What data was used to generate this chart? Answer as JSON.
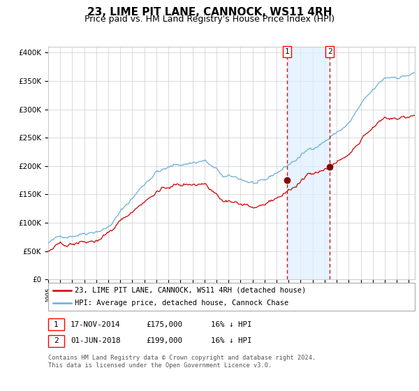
{
  "title": "23, LIME PIT LANE, CANNOCK, WS11 4RH",
  "subtitle": "Price paid vs. HM Land Registry's House Price Index (HPI)",
  "title_fontsize": 11,
  "subtitle_fontsize": 9,
  "legend_line1": "23, LIME PIT LANE, CANNOCK, WS11 4RH (detached house)",
  "legend_line2": "HPI: Average price, detached house, Cannock Chase",
  "annotation1_label": "1",
  "annotation1_date": "17-NOV-2014",
  "annotation1_price": "£175,000",
  "annotation1_hpi": "16% ↓ HPI",
  "annotation2_label": "2",
  "annotation2_date": "01-JUN-2018",
  "annotation2_price": "£199,000",
  "annotation2_hpi": "16% ↓ HPI",
  "purchase1_year": 2014.88,
  "purchase1_value": 175000,
  "purchase2_year": 2018.42,
  "purchase2_value": 199000,
  "hpi_color": "#6aaed6",
  "price_color": "#cc0000",
  "marker_color": "#8b0000",
  "vline_color": "#cc0000",
  "shade_color": "#ddeeff",
  "background_color": "#ffffff",
  "grid_color": "#cccccc",
  "ylim": [
    0,
    410000
  ],
  "yticks": [
    0,
    50000,
    100000,
    150000,
    200000,
    250000,
    300000,
    350000,
    400000
  ],
  "xlim_start": 1995,
  "xlim_end": 2025.5,
  "footer": "Contains HM Land Registry data © Crown copyright and database right 2024.\nThis data is licensed under the Open Government Licence v3.0."
}
